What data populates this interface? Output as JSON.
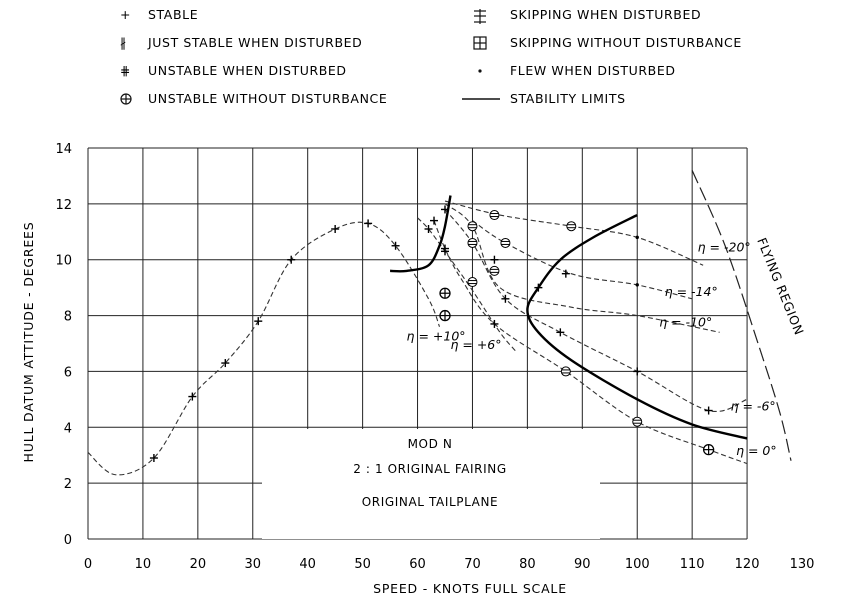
{
  "chart_data": {
    "type": "scatter",
    "xlabel": "SPEED - KNOTS FULL SCALE",
    "ylabel": "HULL DATUM ATTITUDE - DEGREES",
    "xlim": [
      0,
      130
    ],
    "ylim": [
      0,
      14
    ],
    "x_ticks": [
      0,
      10,
      20,
      30,
      40,
      50,
      60,
      70,
      80,
      90,
      100,
      110,
      120,
      130
    ],
    "y_ticks": [
      0,
      2,
      4,
      6,
      8,
      10,
      12,
      14
    ],
    "grid": true,
    "legend": {
      "placement": "top",
      "entries": [
        {
          "symbol": "+",
          "label": "STABLE"
        },
        {
          "symbol": "just-stable",
          "label": "JUST STABLE WHEN DISTURBED"
        },
        {
          "symbol": "unstable-disturbed",
          "label": "UNSTABLE WHEN DISTURBED"
        },
        {
          "symbol": "circle-plus",
          "label": "UNSTABLE WITHOUT DISTURBANCE"
        },
        {
          "symbol": "skip-disturbed",
          "label": "SKIPPING WHEN DISTURBED"
        },
        {
          "symbol": "square-plus",
          "label": "SKIPPING WITHOUT DISTURBANCE"
        },
        {
          "symbol": "dot",
          "label": "FLEW WHEN DISTURBED"
        },
        {
          "symbol": "line",
          "label": "STABILITY LIMITS"
        }
      ]
    },
    "region_label": "FLYING REGION",
    "box_text": [
      "MOD N",
      "2 : 1 ORIGINAL FAIRING",
      "ORIGINAL TAILPLANE"
    ],
    "series": [
      {
        "name": "η = 0°",
        "line": [
          [
            63,
            11.4
          ],
          [
            65,
            10.4
          ],
          [
            68,
            9.3
          ],
          [
            74,
            7.7
          ],
          [
            87,
            6.0
          ],
          [
            100,
            4.2
          ],
          [
            113,
            3.2
          ],
          [
            120,
            2.7
          ]
        ],
        "points": [
          {
            "x": 63,
            "y": 11.4,
            "symbol": "+"
          },
          {
            "x": 65,
            "y": 10.4,
            "symbol": "+"
          },
          {
            "x": 65,
            "y": 8.0,
            "symbol": "circle-plus"
          },
          {
            "x": 65,
            "y": 8.8,
            "symbol": "circle-plus"
          },
          {
            "x": 70,
            "y": 9.2,
            "symbol": "just-stable"
          },
          {
            "x": 74,
            "y": 7.7,
            "symbol": "+"
          },
          {
            "x": 87,
            "y": 6.0,
            "symbol": "just-stable"
          },
          {
            "x": 100,
            "y": 4.2,
            "symbol": "just-stable"
          },
          {
            "x": 113,
            "y": 3.2,
            "symbol": "circle-plus"
          }
        ]
      },
      {
        "name": "η = -6°",
        "line": [
          [
            65,
            11.8
          ],
          [
            70,
            10.6
          ],
          [
            76,
            8.6
          ],
          [
            86,
            7.4
          ],
          [
            100,
            6.0
          ],
          [
            113,
            4.6
          ],
          [
            120,
            5.0
          ]
        ],
        "points": [
          {
            "x": 65,
            "y": 11.8,
            "symbol": "+"
          },
          {
            "x": 70,
            "y": 10.6,
            "symbol": "just-stable"
          },
          {
            "x": 74,
            "y": 9.6,
            "symbol": "just-stable"
          },
          {
            "x": 76,
            "y": 8.6,
            "symbol": "+"
          },
          {
            "x": 86,
            "y": 7.4,
            "symbol": "+"
          },
          {
            "x": 100,
            "y": 6.0,
            "symbol": "+"
          },
          {
            "x": 113,
            "y": 4.6,
            "symbol": "+"
          }
        ]
      },
      {
        "name": "η = -10°",
        "line": [
          [
            65,
            12.0
          ],
          [
            70,
            11.2
          ],
          [
            75,
            9.0
          ],
          [
            88,
            8.3
          ],
          [
            100,
            8.0
          ],
          [
            115,
            7.4
          ]
        ],
        "points": [
          {
            "x": 70,
            "y": 11.2,
            "symbol": "just-stable"
          },
          {
            "x": 74,
            "y": 10.0,
            "symbol": "+"
          },
          {
            "x": 82,
            "y": 9.0,
            "symbol": "+"
          },
          {
            "x": 87,
            "y": 9.5,
            "symbol": "+"
          }
        ]
      },
      {
        "name": "η = -14°",
        "line": [
          [
            70,
            11.4
          ],
          [
            76,
            10.6
          ],
          [
            88,
            9.5
          ],
          [
            100,
            9.1
          ],
          [
            110,
            8.6
          ]
        ],
        "points": [
          {
            "x": 76,
            "y": 10.6,
            "symbol": "just-stable"
          },
          {
            "x": 100,
            "y": 9.1,
            "symbol": "dot"
          }
        ]
      },
      {
        "name": "η = -20°",
        "line": [
          [
            65,
            12.1
          ],
          [
            75,
            11.6
          ],
          [
            88,
            11.2
          ],
          [
            100,
            10.8
          ],
          [
            112,
            9.8
          ]
        ],
        "points": [
          {
            "x": 74,
            "y": 11.6,
            "symbol": "just-stable"
          },
          {
            "x": 88,
            "y": 11.2,
            "symbol": "just-stable"
          },
          {
            "x": 100,
            "y": 10.8,
            "symbol": "dot"
          }
        ]
      },
      {
        "name": "η = +6°",
        "line": [
          [
            60,
            11.5
          ],
          [
            62,
            11.1
          ],
          [
            65,
            10.3
          ],
          [
            70,
            8.9
          ],
          [
            75,
            7.4
          ],
          [
            78,
            6.7
          ]
        ],
        "points": [
          {
            "x": 62,
            "y": 11.1,
            "symbol": "+"
          },
          {
            "x": 65,
            "y": 10.3,
            "symbol": "+"
          }
        ]
      },
      {
        "name": "η = +10°",
        "line": [
          [
            0,
            3.1
          ],
          [
            5,
            2.3
          ],
          [
            12,
            2.9
          ],
          [
            19,
            5.1
          ],
          [
            25,
            6.3
          ],
          [
            31,
            7.8
          ],
          [
            37,
            10.0
          ],
          [
            45,
            11.1
          ],
          [
            51,
            11.3
          ],
          [
            56,
            10.5
          ],
          [
            62,
            8.6
          ],
          [
            64,
            7.6
          ]
        ],
        "points": [
          {
            "x": 12,
            "y": 2.9,
            "symbol": "+"
          },
          {
            "x": 19,
            "y": 5.1,
            "symbol": "+"
          },
          {
            "x": 25,
            "y": 6.3,
            "symbol": "+"
          },
          {
            "x": 31,
            "y": 7.8,
            "symbol": "+"
          },
          {
            "x": 37,
            "y": 10.0,
            "symbol": "+"
          },
          {
            "x": 45,
            "y": 11.1,
            "symbol": "+"
          },
          {
            "x": 51,
            "y": 11.3,
            "symbol": "+"
          },
          {
            "x": 56,
            "y": 10.5,
            "symbol": "+"
          }
        ]
      }
    ],
    "stability_limits": [
      [
        [
          55,
          9.6
        ],
        [
          58,
          9.6
        ],
        [
          62,
          9.8
        ],
        [
          64,
          10.5
        ],
        [
          65,
          11.2
        ],
        [
          66,
          12.3
        ]
      ],
      [
        [
          100,
          11.6
        ],
        [
          92,
          10.8
        ],
        [
          86,
          10.0
        ],
        [
          82,
          9.0
        ],
        [
          80,
          8.2
        ],
        [
          82,
          7.4
        ],
        [
          88,
          6.4
        ],
        [
          100,
          5.0
        ],
        [
          110,
          4.1
        ],
        [
          120,
          3.6
        ]
      ]
    ],
    "flying_region_boundary": [
      [
        110,
        13.2
      ],
      [
        116,
        10.5
      ],
      [
        122,
        7.0
      ],
      [
        126,
        4.5
      ],
      [
        128,
        2.8
      ]
    ],
    "curve_labels": [
      {
        "text": "η = -20°",
        "x": 111,
        "y": 10.3
      },
      {
        "text": "η = -14°",
        "x": 105,
        "y": 8.7
      },
      {
        "text": "η = -10°",
        "x": 104,
        "y": 7.6
      },
      {
        "text": "η = -6°",
        "x": 117,
        "y": 4.6
      },
      {
        "text": "η = 0°",
        "x": 118,
        "y": 3.0
      },
      {
        "text": "η = +10°",
        "x": 58,
        "y": 7.1
      },
      {
        "text": "η = +6°",
        "x": 66,
        "y": 6.8
      }
    ]
  }
}
